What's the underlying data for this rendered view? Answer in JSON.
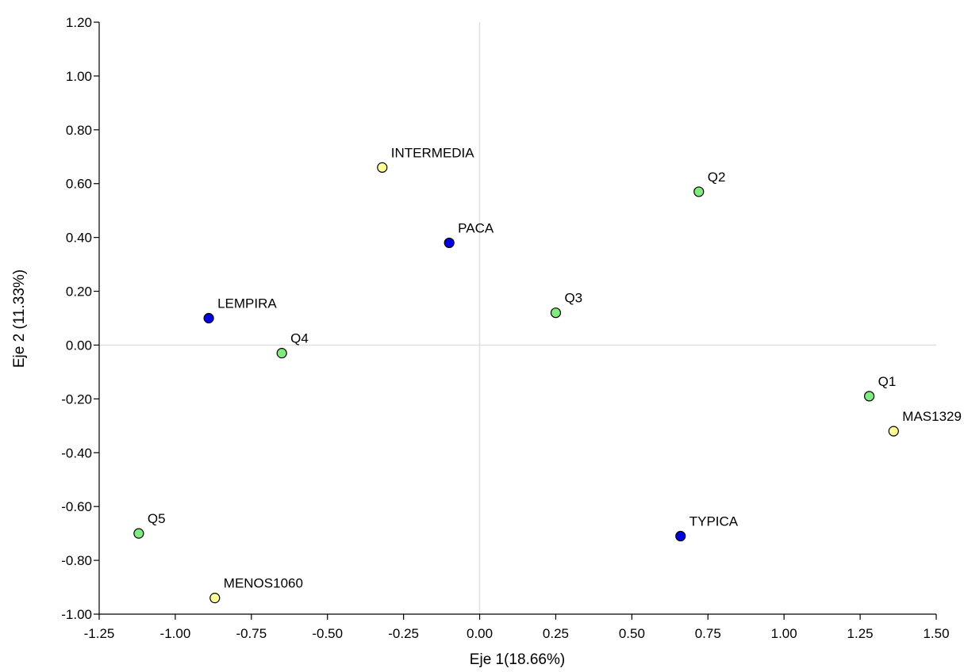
{
  "chart_data": {
    "type": "scatter",
    "title": "",
    "xlabel": "Eje 1(18.66%)",
    "ylabel": "Eje 2 (11.33%)",
    "xlim": [
      -1.25,
      1.5
    ],
    "ylim": [
      -1.0,
      1.2
    ],
    "xticks": [
      "-1.25",
      "-1.00",
      "-0.75",
      "-0.50",
      "-0.25",
      "0.00",
      "0.25",
      "0.50",
      "0.75",
      "1.00",
      "1.25",
      "1.50"
    ],
    "yticks": [
      "1.20",
      "1.00",
      "0.80",
      "0.60",
      "0.40",
      "0.20",
      "0.00",
      "-0.20",
      "-0.40",
      "-0.60",
      "-0.80",
      "-1.00"
    ],
    "grid": false,
    "reference_lines": {
      "x": 0,
      "y": 0,
      "color": "#e0e0e0"
    },
    "point_colors": {
      "blue": "#0000e0",
      "green": "#80ec80",
      "yellow": "#ffff96"
    },
    "points": [
      {
        "label": "INTERMEDIA",
        "x": -0.32,
        "y": 0.66,
        "color": "yellow"
      },
      {
        "label": "Q2",
        "x": 0.72,
        "y": 0.57,
        "color": "green"
      },
      {
        "label": "PACA",
        "x": -0.1,
        "y": 0.38,
        "color": "blue"
      },
      {
        "label": "LEMPIRA",
        "x": -0.89,
        "y": 0.1,
        "color": "blue"
      },
      {
        "label": "Q3",
        "x": 0.25,
        "y": 0.12,
        "color": "green"
      },
      {
        "label": "Q4",
        "x": -0.65,
        "y": -0.03,
        "color": "green"
      },
      {
        "label": "Q1",
        "x": 1.28,
        "y": -0.19,
        "color": "green"
      },
      {
        "label": "MAS1329",
        "x": 1.36,
        "y": -0.32,
        "color": "yellow"
      },
      {
        "label": "Q5",
        "x": -1.12,
        "y": -0.7,
        "color": "green"
      },
      {
        "label": "TYPICA",
        "x": 0.66,
        "y": -0.71,
        "color": "blue"
      },
      {
        "label": "MENOS1060",
        "x": -0.87,
        "y": -0.94,
        "color": "yellow"
      }
    ]
  }
}
